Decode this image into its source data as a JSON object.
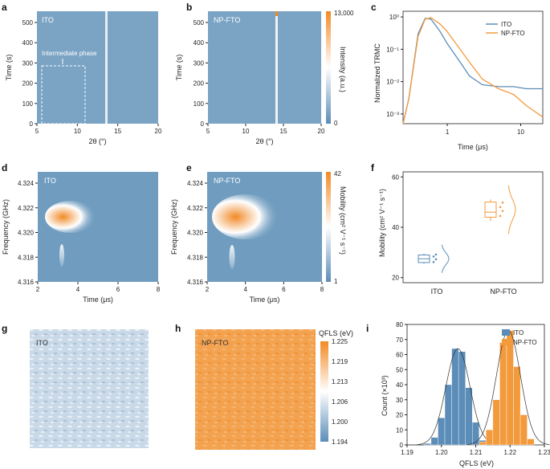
{
  "colors": {
    "ito": "#5b8db8",
    "npfto": "#f39a3c",
    "map_bg": "#6f9cbf"
  },
  "panels": {
    "a": {
      "letter": "a",
      "label": "ITO",
      "annotation": "Intermediate phase",
      "xlabel": "2θ (°)",
      "ylabel": "Time (s)",
      "xticks": [
        "5",
        "10",
        "15",
        "20"
      ],
      "yticks": [
        "0",
        "100",
        "200",
        "300",
        "400",
        "500"
      ]
    },
    "b": {
      "letter": "b",
      "label": "NP-FTO",
      "xlabel": "2θ (°)",
      "ylabel": "Time (s)",
      "xticks": [
        "5",
        "10",
        "15",
        "20"
      ],
      "yticks": [
        "0",
        "100",
        "200",
        "300",
        "400",
        "500"
      ],
      "cbar_label": "Intensity (a.u.)",
      "cbar_max": "13,000",
      "cbar_min": "0"
    },
    "c": {
      "letter": "c",
      "xlabel": "Time (μs)",
      "ylabel": "Normalized TRMC",
      "xticks": [
        "1",
        "10"
      ],
      "yticks": [
        "10⁰",
        "10⁻¹",
        "10⁻²",
        "10⁻³"
      ],
      "legend": [
        "ITO",
        "NP-FTO"
      ]
    },
    "d": {
      "letter": "d",
      "label": "ITO",
      "xlabel": "Time (μs)",
      "ylabel": "Frequency (GHz)",
      "xticks": [
        "2",
        "4",
        "6",
        "8"
      ],
      "yticks": [
        "4.324",
        "4.322",
        "4.320",
        "4.318",
        "4.316"
      ]
    },
    "e": {
      "letter": "e",
      "label": "NP-FTO",
      "xlabel": "Time (μs)",
      "ylabel": "Frequency (GHz)",
      "xticks": [
        "2",
        "4",
        "6",
        "8"
      ],
      "yticks": [
        "4.324",
        "4.322",
        "4.320",
        "4.318",
        "4.316"
      ],
      "cbar_label": "Mobility (cm² V⁻¹ s⁻¹)",
      "cbar_max": "42",
      "cbar_min": "1"
    },
    "f": {
      "letter": "f",
      "ylabel": "Mobility (cm² V⁻¹ s⁻¹)",
      "categories": [
        "ITO",
        "NP-FTO"
      ],
      "yticks": [
        "20",
        "40",
        "60"
      ]
    },
    "g": {
      "letter": "g",
      "label": "ITO"
    },
    "h": {
      "letter": "h",
      "label": "NP-FTO",
      "cbar_title": "QFLS (eV)",
      "cbar_ticks": [
        "1.225",
        "1.219",
        "1.213",
        "1.206",
        "1.200",
        "1.194"
      ]
    },
    "i": {
      "letter": "i",
      "xlabel": "QFLS (eV)",
      "ylabel": "Count (×10³)",
      "xticks": [
        "1.19",
        "1.20",
        "1.21",
        "1.22",
        "1.23"
      ],
      "yticks": [
        "0",
        "10",
        "20",
        "30",
        "40",
        "50",
        "60",
        "70",
        "80"
      ],
      "legend": [
        "ITO",
        "NP-FTO"
      ]
    }
  },
  "chart_data": [
    {
      "id": "c",
      "type": "line",
      "title": "",
      "xlabel": "Time (μs)",
      "ylabel": "Normalized TRMC",
      "xscale": "log",
      "yscale": "log",
      "xlim": [
        0.25,
        20
      ],
      "ylim": [
        0.0005,
        1.5
      ],
      "series": [
        {
          "name": "ITO",
          "x": [
            0.25,
            0.3,
            0.4,
            0.5,
            0.6,
            0.8,
            1.0,
            1.5,
            2,
            3,
            5,
            8,
            12,
            20
          ],
          "y": [
            0.0005,
            0.003,
            0.3,
            0.9,
            0.85,
            0.35,
            0.15,
            0.04,
            0.015,
            0.008,
            0.007,
            0.007,
            0.006,
            0.006
          ]
        },
        {
          "name": "NP-FTO",
          "x": [
            0.25,
            0.3,
            0.4,
            0.5,
            0.6,
            0.8,
            1.0,
            1.5,
            2,
            3,
            5,
            8,
            12,
            20
          ],
          "y": [
            0.0005,
            0.003,
            0.25,
            0.85,
            0.95,
            0.6,
            0.35,
            0.1,
            0.04,
            0.012,
            0.006,
            0.004,
            0.0018,
            0.0008
          ]
        }
      ]
    },
    {
      "id": "f",
      "type": "box",
      "ylabel": "Mobility (cm² V⁻¹ s⁻¹)",
      "categories": [
        "ITO",
        "NP-FTO"
      ],
      "ylim": [
        18,
        62
      ],
      "series": [
        {
          "name": "ITO",
          "min": 25.5,
          "q1": 26.0,
          "median": 27.5,
          "q3": 29.0,
          "max": 29.5,
          "points": [
            26.2,
            27.3,
            28.4,
            29.2
          ]
        },
        {
          "name": "NP-FTO",
          "min": 42.5,
          "q1": 44.0,
          "median": 46.0,
          "q3": 50.0,
          "max": 51.0,
          "points": [
            44.5,
            46.5,
            48.0,
            49.8
          ]
        }
      ]
    },
    {
      "id": "i",
      "type": "bar",
      "xlabel": "QFLS (eV)",
      "ylabel": "Count (×10³)",
      "xlim": [
        1.19,
        1.23
      ],
      "ylim": [
        0,
        80
      ],
      "series": [
        {
          "name": "ITO",
          "x": [
            1.196,
            1.198,
            1.2,
            1.202,
            1.204,
            1.206,
            1.208,
            1.21,
            1.212
          ],
          "values": [
            1,
            5,
            18,
            40,
            64,
            62,
            38,
            15,
            3
          ]
        },
        {
          "name": "NP-FTO",
          "x": [
            1.212,
            1.214,
            1.216,
            1.218,
            1.22,
            1.222,
            1.224,
            1.226
          ],
          "values": [
            2,
            10,
            30,
            68,
            76,
            52,
            20,
            4
          ]
        }
      ]
    }
  ]
}
